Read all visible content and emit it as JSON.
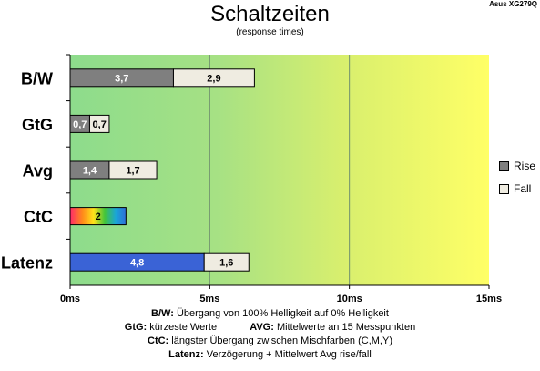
{
  "chart_data": {
    "type": "bar",
    "stacked": true,
    "orientation": "horizontal",
    "title": "Schaltzeiten",
    "subtitle": "(response times)",
    "model_label": "Asus XG279Q",
    "categories": [
      "B/W",
      "GtG",
      "Avg",
      "CtC",
      "Latenz"
    ],
    "series": [
      {
        "name": "Rise",
        "values": [
          3.7,
          0.7,
          1.4,
          null,
          4.8
        ],
        "labels": [
          "3,7",
          "0,7",
          "1,4",
          "",
          "4,8"
        ]
      },
      {
        "name": "Fall",
        "values": [
          2.9,
          0.7,
          1.7,
          null,
          1.6
        ],
        "labels": [
          "2,9",
          "0,7",
          "1,7",
          "",
          "1,6"
        ]
      },
      {
        "name": "",
        "values": [
          null,
          null,
          null,
          2.0,
          null
        ],
        "labels": [
          "",
          "",
          "",
          "2",
          ""
        ]
      }
    ],
    "xlim": [
      0,
      15
    ],
    "x_ticks": [
      "0ms",
      "5ms",
      "10ms",
      "15ms"
    ],
    "grid": true,
    "legend_position": "right",
    "colors": {
      "rise": "#7f7f7f",
      "fall": "#efece1",
      "latenz_rise": "#3a63d6",
      "background_green": "#93dc8a",
      "background_yellow": "#ffff66"
    }
  },
  "notes": {
    "bw_term": "B/W:",
    "bw_text": "Übergang von 100% Helligkeit auf 0% Helligkeit",
    "gtg_term": "GtG:",
    "gtg_text": "kürzeste Werte",
    "avg_term": "AVG:",
    "avg_text": "Mittelwerte an 15 Messpunkten",
    "ctc_term": "CtC:",
    "ctc_text": "längster Übergang zwischen Mischfarben (C,M,Y)",
    "lat_term": "Latenz:",
    "lat_text": "Verzögerung + Mittelwert Avg rise/fall"
  }
}
